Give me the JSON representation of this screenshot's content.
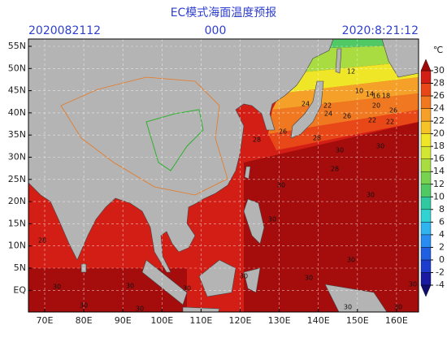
{
  "header": {
    "title": "EC模式海面温度预报",
    "left": "2020082112",
    "center": "000",
    "right": "2020:8:21:12"
  },
  "map": {
    "lat_labels": [
      "55N",
      "50N",
      "45N",
      "40N",
      "35N",
      "30N",
      "25N",
      "20N",
      "15N",
      "10N",
      "5N",
      "EQ"
    ],
    "lon_labels": [
      "70E",
      "80E",
      "90E",
      "100E",
      "110E",
      "120E",
      "130E",
      "140E",
      "150E",
      "160E"
    ],
    "contour_labels": [
      "12",
      "10",
      "14",
      "16",
      "18",
      "20",
      "22",
      "22",
      "24",
      "24",
      "26",
      "26",
      "22",
      "26",
      "28",
      "28",
      "30",
      "30",
      "30",
      "30",
      "30",
      "28",
      "30",
      "30",
      "30",
      "30",
      "30",
      "30",
      "30",
      "30",
      "30",
      "30",
      "30",
      "28"
    ]
  },
  "colorbar": {
    "unit": "℃",
    "ticks": [
      -4,
      -2,
      0,
      2,
      4,
      6,
      8,
      10,
      12,
      14,
      16,
      18,
      20,
      22,
      24,
      26,
      28,
      30
    ],
    "colors": [
      "#1a1aa0",
      "#1e3ccc",
      "#2060e0",
      "#2a8cf0",
      "#30b4f0",
      "#30d2d2",
      "#30c8a0",
      "#50c864",
      "#78d250",
      "#a8dc40",
      "#d2e632",
      "#f0e628",
      "#f5c328",
      "#f5a028",
      "#f07820",
      "#e84818",
      "#d21e14"
    ],
    "over_color": "#a00a0a",
    "under_color": "#100c70"
  }
}
